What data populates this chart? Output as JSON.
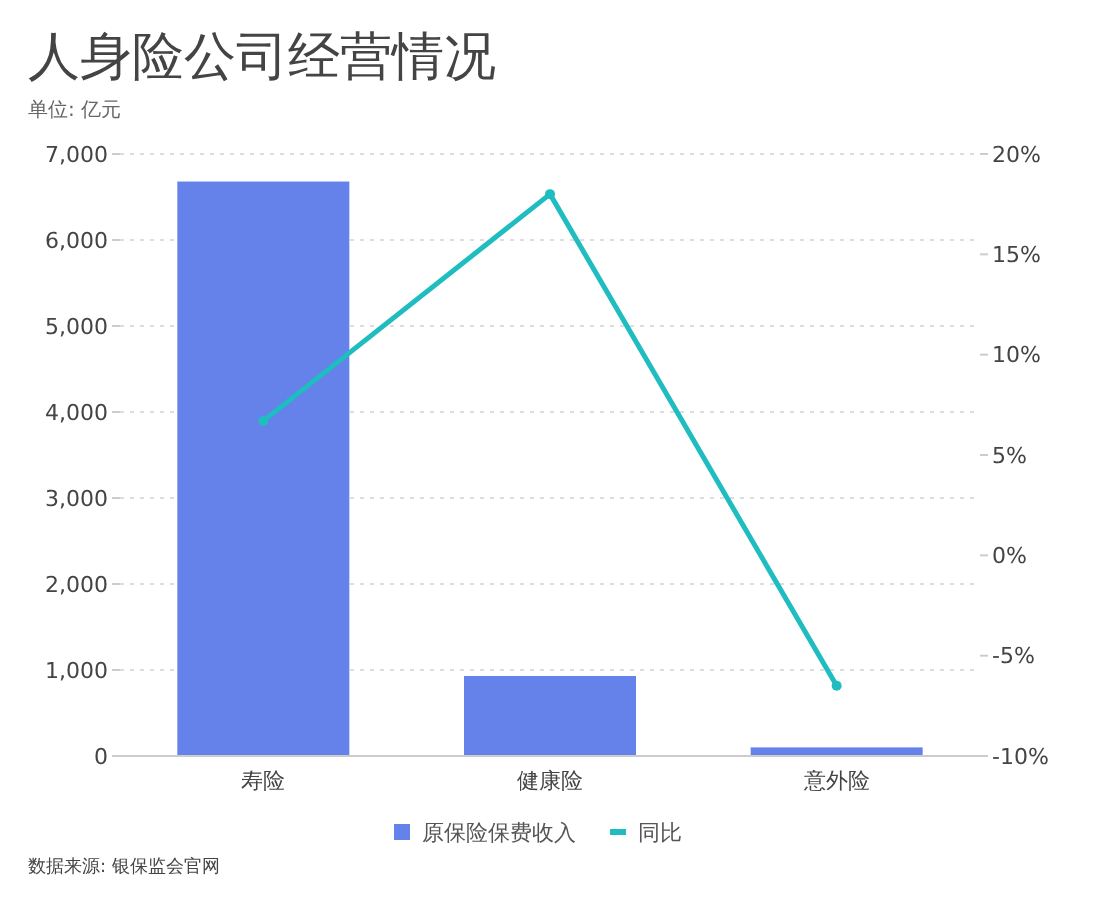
{
  "chart_data": {
    "type": "bar",
    "title": "人身险公司经营情况",
    "subtitle": "单位: 亿元",
    "annotations": [
      "数据来源: 银保监会官网"
    ],
    "categories": [
      "寿险",
      "健康险",
      "意外险"
    ],
    "series": [
      {
        "name": "原保险保费收入",
        "color": "#6581ea",
        "values": [
          6680,
          930,
          100
        ]
      },
      {
        "name": "同比",
        "type": "line",
        "axis": "y2",
        "marker": "circle",
        "color": "#1fbcc0",
        "values": [
          6.7,
          18,
          -6.5
        ]
      }
    ],
    "ylim": [
      0,
      7000
    ],
    "yticks": [
      {
        "value": 0,
        "label": "0"
      },
      {
        "value": 1000,
        "label": "1,000"
      },
      {
        "value": 2000,
        "label": "2,000"
      },
      {
        "value": 3000,
        "label": "3,000"
      },
      {
        "value": 4000,
        "label": "4,000"
      },
      {
        "value": 5000,
        "label": "5,000"
      },
      {
        "value": 6000,
        "label": "6,000"
      },
      {
        "value": 7000,
        "label": "7,000"
      }
    ],
    "y2lim": [
      -10,
      20
    ],
    "y2ticks": [
      {
        "value": -10,
        "label": "-10%"
      },
      {
        "value": -5,
        "label": "-5%"
      },
      {
        "value": 0,
        "label": "0%"
      },
      {
        "value": 5,
        "label": "5%"
      },
      {
        "value": 10,
        "label": "10%"
      },
      {
        "value": 15,
        "label": "15%"
      },
      {
        "value": 20,
        "label": "20%"
      }
    ],
    "grid": "y",
    "legend": "bottom"
  }
}
